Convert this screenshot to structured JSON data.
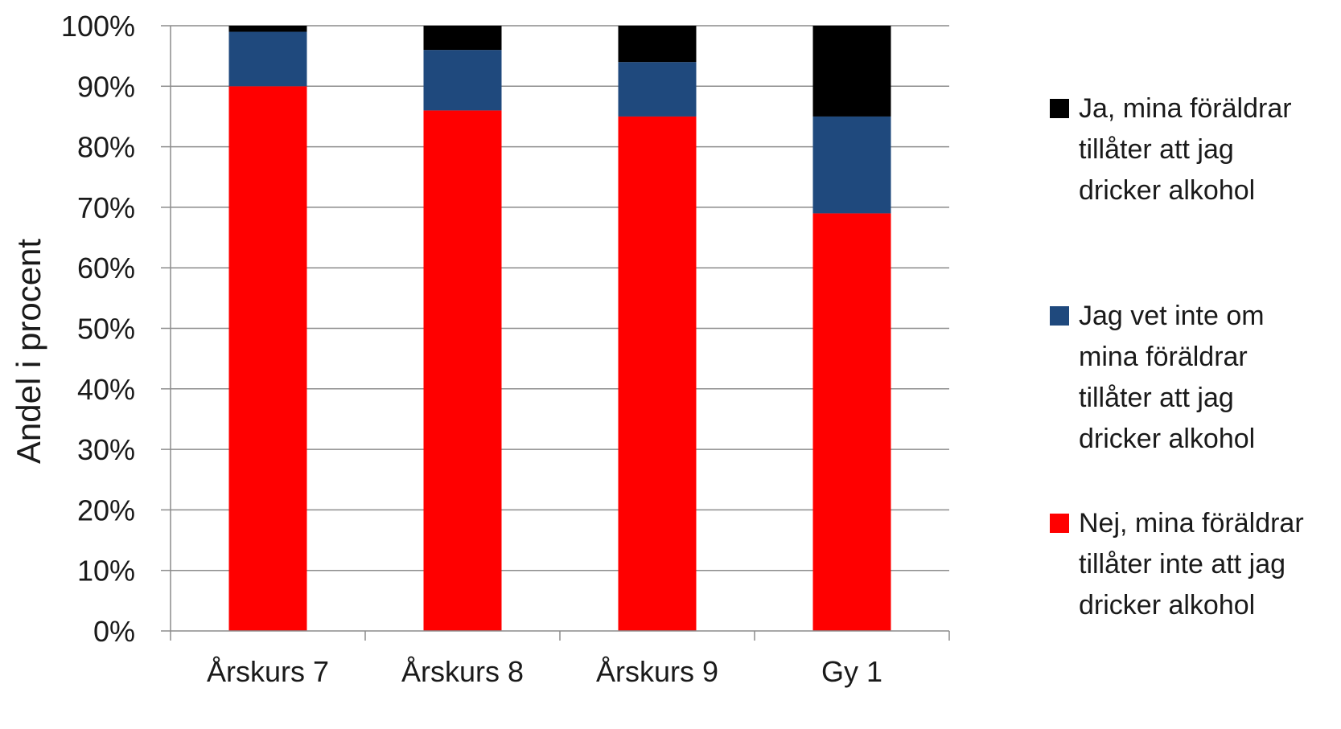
{
  "chart_data": {
    "type": "bar",
    "stacked": true,
    "normalized": true,
    "ylabel": "Andel i procent",
    "ylim": [
      0,
      100
    ],
    "yticks": [
      "0%",
      "10%",
      "20%",
      "30%",
      "40%",
      "50%",
      "60%",
      "70%",
      "80%",
      "90%",
      "100%"
    ],
    "grid": true,
    "legend_position": "right",
    "categories": [
      "Årskurs 7",
      "Årskurs 8",
      "Årskurs 9",
      "Gy 1"
    ],
    "series": [
      {
        "name": "Nej, mina föräldrar tillåter inte att jag dricker alkohol",
        "color": "#ff0000",
        "values": [
          90,
          86,
          85,
          69
        ]
      },
      {
        "name": "Jag vet inte om mina föräldrar tillåter att jag dricker alkohol",
        "color": "#1f497d",
        "values": [
          9,
          10,
          9,
          16
        ]
      },
      {
        "name": "Ja, mina föräldrar tillåter att jag dricker alkohol",
        "color": "#000000",
        "values": [
          1,
          4,
          6,
          15
        ]
      }
    ]
  }
}
